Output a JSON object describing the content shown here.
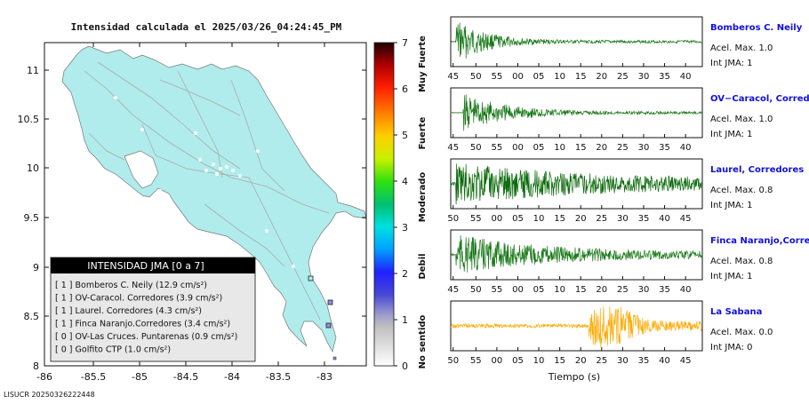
{
  "title": "Intensidad calculada el 2025/03/26_04:24:45_PM",
  "footer_id": "LISUCR 20250326222448",
  "map": {
    "lon_ticks": [
      "-86",
      "-85.5",
      "-85",
      "-84.5",
      "-84",
      "-83.5",
      "-83"
    ],
    "lat_ticks": [
      "11",
      "10.5",
      "10",
      "9.5",
      "9",
      "8.5",
      "8"
    ],
    "land_color": "#b0ecec"
  },
  "colorbar": {
    "ticks": [
      "0",
      "1",
      "2",
      "3",
      "4",
      "5",
      "6",
      "7"
    ],
    "labels": [
      "No sentido",
      "Debil",
      "Moderado",
      "Fuerte",
      "Muy Fuerte"
    ]
  },
  "legend": {
    "title": "INTENSIDAD JMA [0 a 7]",
    "items": [
      {
        "text": "[ 1 ]  Bomberos C. Neily (12.9 cm/s²)"
      },
      {
        "text": "[ 1 ]  OV-Caracol. Corredores (3.9 cm/s²)"
      },
      {
        "text": "[ 1 ]  Laurel. Corredores (4.3 cm/s²)"
      },
      {
        "text": "[ 1 ]  Finca Naranjo.Corredores (3.4 cm/s²)"
      },
      {
        "text": "[ 0 ]  OV-Las Cruces. Puntarenas (0.9 cm/s²)"
      },
      {
        "text": "[ 0 ]  Golfito CTP (1.0 cm/s²)"
      }
    ]
  },
  "chart_data": {
    "type": "line",
    "xlabel": "Tiempo (s)",
    "series": [
      {
        "name": "Bomberos C. Neily",
        "acel_label": "Acel. Max. 1.0",
        "int_label": "Int JMA: 1",
        "color": "#1a7a1a",
        "ticks": [
          "45",
          "50",
          "55",
          "00",
          "05",
          "10",
          "15",
          "20",
          "25",
          "30",
          "35",
          "40"
        ],
        "envelope": {
          "peak": 1.0,
          "onset": 0.02,
          "decay": 0.12,
          "floor": 0.06
        }
      },
      {
        "name": "OV−Caracol, Corredores",
        "acel_label": "Acel. Max. 1.0",
        "int_label": "Int JMA: 1",
        "color": "#1a7a1a",
        "ticks": [
          "45",
          "50",
          "55",
          "00",
          "05",
          "10",
          "15",
          "20",
          "25",
          "30",
          "35",
          "40"
        ],
        "envelope": {
          "peak": 0.85,
          "onset": 0.05,
          "decay": 0.18,
          "floor": 0.05
        }
      },
      {
        "name": "Laurel, Corredores",
        "acel_label": "Acel. Max. 0.8",
        "int_label": "Int JMA: 1",
        "color": "#0b6a0b",
        "ticks": [
          "50",
          "55",
          "00",
          "05",
          "10",
          "15",
          "20",
          "25",
          "30",
          "35",
          "40",
          "45"
        ],
        "envelope": {
          "peak": 0.95,
          "onset": 0.02,
          "decay": 0.5,
          "floor": 0.2
        }
      },
      {
        "name": "Finca Naranjo,Corredores",
        "acel_label": "Acel. Max. 0.8",
        "int_label": "Int JMA: 1",
        "color": "#1a7a1a",
        "ticks": [
          "45",
          "50",
          "55",
          "00",
          "05",
          "10",
          "15",
          "20",
          "25",
          "30",
          "35",
          "40"
        ],
        "envelope": {
          "peak": 0.9,
          "onset": 0.02,
          "decay": 0.35,
          "floor": 0.12
        }
      },
      {
        "name": "La Sabana",
        "acel_label": "Acel. Max. 0.0",
        "int_label": "Int JMA: 0",
        "color": "#ffaa00",
        "ticks": [
          "50",
          "55",
          "00",
          "05",
          "10",
          "15",
          "20",
          "25",
          "30",
          "35",
          "40",
          "45"
        ],
        "envelope": {
          "peak": 0.75,
          "onset": 0.55,
          "decay": 0.3,
          "floor": 0.22
        }
      }
    ]
  }
}
